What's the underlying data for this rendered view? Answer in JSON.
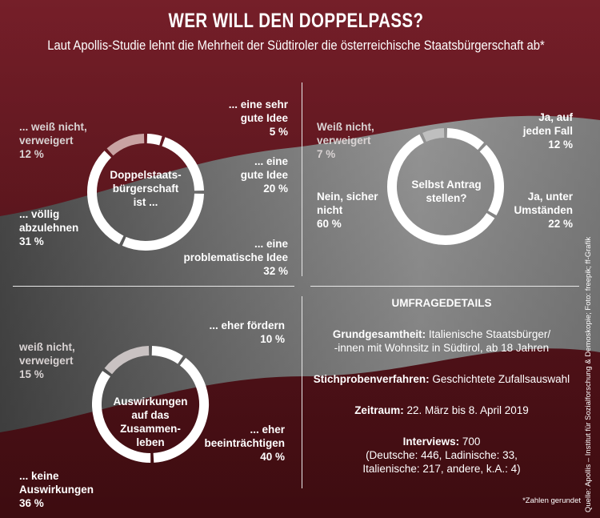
{
  "header": {
    "title": "WER WILL DEN DOPPELPASS?",
    "subtitle": "Laut Apollis-Studie lehnt die Mehrheit der Südtiroler die österreichische Staatsbürgerschaft ab*"
  },
  "chart_data": [
    {
      "type": "pie",
      "center_label": "Doppelstaats-\nbürgerschaft\nist ...",
      "slices": [
        {
          "label": "... eine sehr\ngute Idee",
          "value_label": "5 %",
          "value": 5,
          "color": "#ffffff"
        },
        {
          "label": "... eine\ngute Idee",
          "value_label": "20 %",
          "value": 20,
          "color": "#ffffff"
        },
        {
          "label": "... eine\nproblematische Idee",
          "value_label": "32 %",
          "value": 32,
          "color": "#ffffff"
        },
        {
          "label": "... völlig\nabzulehnen",
          "value_label": "31 %",
          "value": 31,
          "color": "#ffffff"
        },
        {
          "label": "... weiß nicht,\nverweigert",
          "value_label": "12 %",
          "value": 12,
          "color": "#c9a3a3"
        }
      ]
    },
    {
      "type": "pie",
      "center_label": "Selbst Antrag\nstellen?",
      "slices": [
        {
          "label": "Ja, auf\njeden Fall",
          "value_label": "12 %",
          "value": 12,
          "color": "#ffffff"
        },
        {
          "label": "Ja, unter\nUmständen",
          "value_label": "22 %",
          "value": 22,
          "color": "#ffffff"
        },
        {
          "label": "Nein, sicher\nnicht",
          "value_label": "60 %",
          "value": 60,
          "color": "#ffffff"
        },
        {
          "label": "Weiß nicht,\nverweigert",
          "value_label": "7 %",
          "value": 7,
          "color": "#bfbfbf"
        }
      ]
    },
    {
      "type": "pie",
      "center_label": "Auswirkungen\nauf das\nZusammen-\nleben",
      "slices": [
        {
          "label": "... eher fördern",
          "value_label": "10 %",
          "value": 10,
          "color": "#ffffff"
        },
        {
          "label": "... eher\nbeeinträchtigen",
          "value_label": "40 %",
          "value": 40,
          "color": "#ffffff"
        },
        {
          "label": "... keine\nAuswirkungen",
          "value_label": "36 %",
          "value": 36,
          "color": "#ffffff"
        },
        {
          "label": "weiß nicht,\nverweigert",
          "value_label": "15 %",
          "value": 15,
          "color": "#c9c2c2"
        }
      ]
    }
  ],
  "details": {
    "heading": "UMFRAGEDETAILS",
    "grund_label": "Grundgesamtheit:",
    "grund_value": "Italienische Staatsbürger/\n-innen mit Wohnsitz in Südtirol, ab 18 Jahren",
    "stich_label": "Stichprobenverfahren:",
    "stich_value": "Geschichtete Zufallsauswahl",
    "zeit_label": "Zeitraum:",
    "zeit_value": "22. März bis 8. April 2019",
    "interviews_label": "Interviews:",
    "interviews_value": "700",
    "interviews_breakdown": "(Deutsche: 446, Ladinische: 33,\nItalienische: 217, andere, k.A.: 4)"
  },
  "footnote": "*Zahlen gerundet",
  "source": "Quelle: Apollis – Institut für Sozialforschung & Demoskopie; Foto: freepik; ff-Grafik",
  "colors": {
    "background_red": "#7a1f28",
    "flag_white": "#d8d8d8",
    "ring": "#ffffff"
  }
}
